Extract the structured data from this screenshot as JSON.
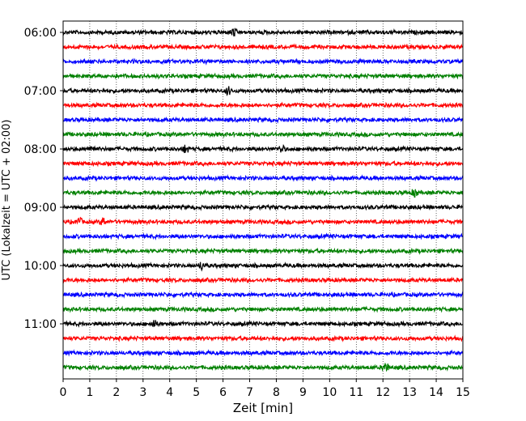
{
  "chart_data": {
    "type": "line",
    "title": "",
    "xlabel": "Zeit  [min]",
    "ylabel": "UTC (Lokalzeit = UTC + 02:00)",
    "xlim": [
      0,
      15
    ],
    "x_ticks": [
      "0",
      "1",
      "2",
      "3",
      "4",
      "5",
      "6",
      "7",
      "8",
      "9",
      "10",
      "11",
      "12",
      "13",
      "14",
      "15"
    ],
    "y_ticks": [
      {
        "label": "06:00",
        "trace": 0
      },
      {
        "label": "07:00",
        "trace": 4
      },
      {
        "label": "08:00",
        "trace": 8
      },
      {
        "label": "09:00",
        "trace": 12
      },
      {
        "label": "10:00",
        "trace": 16
      },
      {
        "label": "11:00",
        "trace": 20
      }
    ],
    "trace_interval_min": 15,
    "trace_count": 24,
    "first_trace_time": "06:00",
    "color_cycle": [
      "#000000",
      "#ff0000",
      "#0000ff",
      "#008000"
    ],
    "grid": "vertical dotted lines at each minute",
    "notable_events": [
      {
        "trace_time": "11:45",
        "minute": 12.1,
        "note": "largest burst"
      },
      {
        "trace_time": "08:45",
        "minute": 13.2,
        "note": "spike"
      },
      {
        "trace_time": "09:15",
        "minute": 0.6,
        "note": "spike"
      },
      {
        "trace_time": "09:15",
        "minute": 1.5,
        "note": "spike"
      },
      {
        "trace_time": "08:00",
        "minute": 1.1,
        "note": "spike"
      },
      {
        "trace_time": "08:00",
        "minute": 4.6,
        "note": "spike"
      },
      {
        "trace_time": "08:00",
        "minute": 8.2,
        "note": "spike"
      },
      {
        "trace_time": "06:00",
        "minute": 6.4,
        "note": "spike"
      },
      {
        "trace_time": "10:00",
        "minute": 5.2,
        "note": "spike"
      },
      {
        "trace_time": "11:00",
        "minute": 3.4,
        "note": "spike"
      },
      {
        "trace_time": "07:00",
        "minute": 6.2,
        "note": "spike"
      }
    ]
  }
}
